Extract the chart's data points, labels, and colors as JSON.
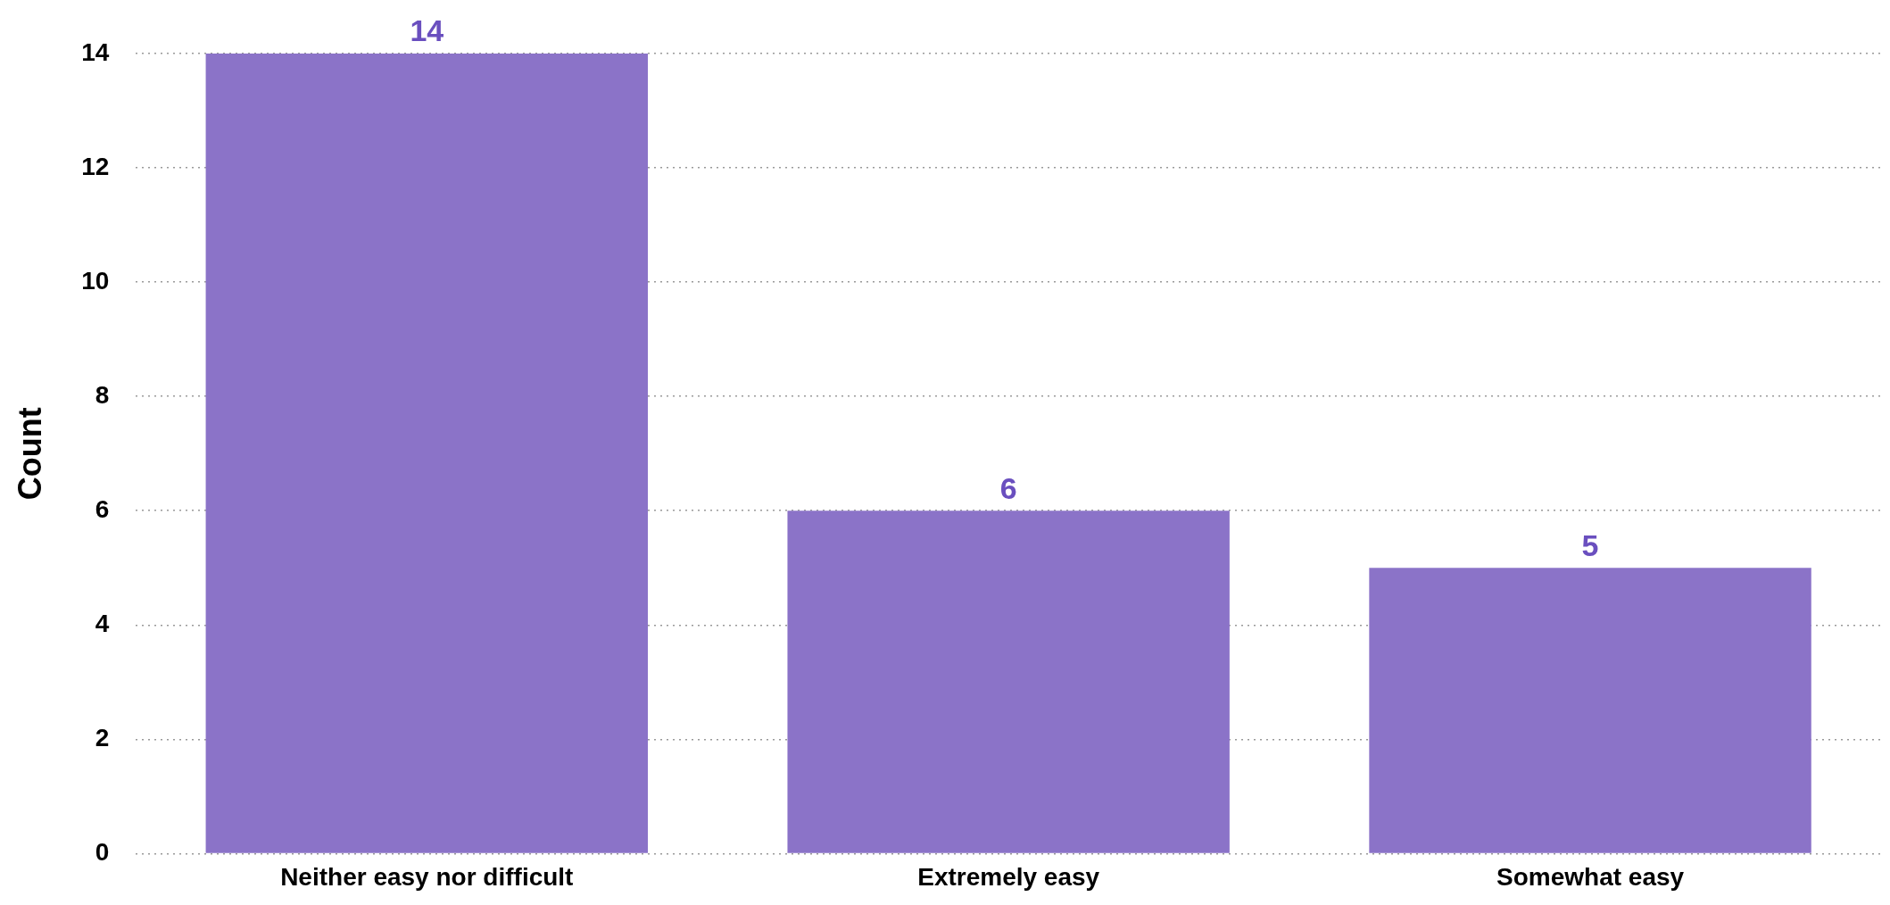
{
  "chart_data": {
    "type": "bar",
    "ylabel": "Count",
    "categories": [
      "Neither easy nor difficult",
      "Extremely easy",
      "Somewhat easy"
    ],
    "values": [
      14,
      6,
      5
    ],
    "color": "#8b73c8",
    "ylim": [
      0,
      14
    ],
    "yticks": [
      0,
      2,
      4,
      6,
      8,
      10,
      12,
      14
    ],
    "grid": "y",
    "data_labels": true,
    "legend": false
  }
}
